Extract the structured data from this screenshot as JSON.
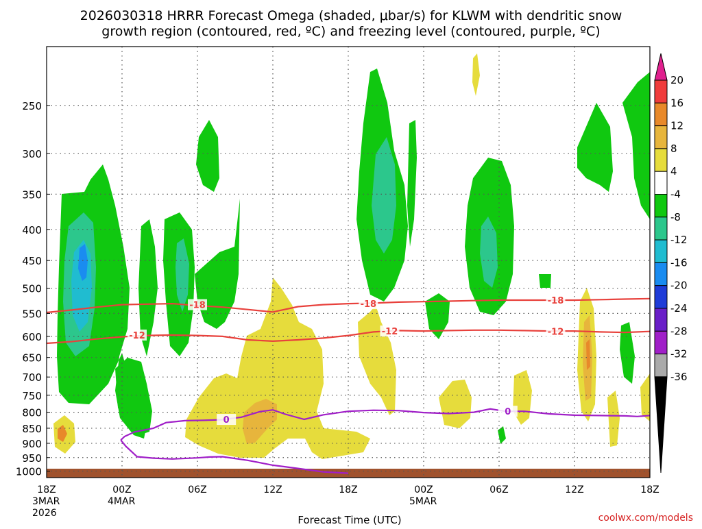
{
  "chart_data": {
    "type": "heatmap",
    "title_lines": [
      "2026030318 HRRR Forecast Omega (shaded, μbar/s) for KLWM with dendritic snow",
      "growth region (contoured, red, ºC) and freezing level (contoured, purple, ºC)"
    ],
    "xlabel": "Forecast Time (UTC)",
    "credit": "coolwx.com/models",
    "x_hours": [
      0,
      48
    ],
    "x_ticks": [
      {
        "h": 0,
        "lines": [
          "18Z",
          "3MAR",
          "2026"
        ]
      },
      {
        "h": 6,
        "lines": [
          "00Z",
          "4MAR"
        ]
      },
      {
        "h": 12,
        "lines": [
          "06Z"
        ]
      },
      {
        "h": 18,
        "lines": [
          "12Z"
        ]
      },
      {
        "h": 24,
        "lines": [
          "18Z"
        ]
      },
      {
        "h": 30,
        "lines": [
          "00Z",
          "5MAR"
        ]
      },
      {
        "h": 36,
        "lines": [
          "06Z"
        ]
      },
      {
        "h": 42,
        "lines": [
          "12Z"
        ]
      },
      {
        "h": 48,
        "lines": [
          "18Z"
        ]
      }
    ],
    "y_range_hpa": [
      200,
      1025
    ],
    "y_ticks": [
      250,
      300,
      350,
      400,
      450,
      500,
      550,
      600,
      650,
      700,
      750,
      800,
      850,
      900,
      950,
      1000
    ],
    "colorbar": {
      "labels": [
        "20",
        "16",
        "12",
        "8",
        "4",
        "-4",
        "-8",
        "-12",
        "-16",
        "-20",
        "-24",
        "-28",
        "-32",
        "-36"
      ],
      "bins": [
        {
          "lo": 16,
          "hi": 20,
          "color": "#f03c3c"
        },
        {
          "lo": 12,
          "hi": 16,
          "color": "#e8892a"
        },
        {
          "lo": 8,
          "hi": 12,
          "color": "#e7b53c"
        },
        {
          "lo": 4,
          "hi": 8,
          "color": "#e6dc3c"
        },
        {
          "lo": -4,
          "hi": 4,
          "color": "#ffffff"
        },
        {
          "lo": -8,
          "hi": -4,
          "color": "#10c810"
        },
        {
          "lo": -12,
          "hi": -8,
          "color": "#2cc78c"
        },
        {
          "lo": -16,
          "hi": -12,
          "color": "#20bcd0"
        },
        {
          "lo": -20,
          "hi": -16,
          "color": "#1a8cf0"
        },
        {
          "lo": -24,
          "hi": -20,
          "color": "#1f3cd8"
        },
        {
          "lo": -28,
          "hi": -24,
          "color": "#6a1fc8"
        },
        {
          "lo": -32,
          "hi": -28,
          "color": "#a01fc8"
        },
        {
          "lo": -36,
          "hi": -32,
          "color": "#aaaaaa"
        }
      ],
      "top_color": "#e0208e",
      "bottom_color": "#000000"
    },
    "contours": [
      {
        "name": "minus18",
        "label": "-18",
        "color": "#e8413c",
        "pts": [
          [
            0,
            548
          ],
          [
            2,
            543
          ],
          [
            4,
            537
          ],
          [
            6,
            532
          ],
          [
            8,
            531
          ],
          [
            10,
            530
          ],
          [
            12,
            534
          ],
          [
            14,
            537
          ],
          [
            16,
            542
          ],
          [
            18,
            547
          ],
          [
            20,
            536
          ],
          [
            22,
            532
          ],
          [
            24,
            530
          ],
          [
            26,
            529
          ],
          [
            28,
            527
          ],
          [
            30,
            526
          ],
          [
            32,
            525
          ],
          [
            34,
            524
          ],
          [
            36,
            523
          ],
          [
            38,
            523
          ],
          [
            40,
            523
          ],
          [
            42,
            523
          ],
          [
            44,
            522
          ],
          [
            46,
            521
          ],
          [
            48,
            520
          ]
        ],
        "labels_at": [
          [
            12,
            532
          ],
          [
            25.6,
            530
          ],
          [
            40.5,
            523
          ]
        ]
      },
      {
        "name": "minus12",
        "label": "-12",
        "color": "#e8413c",
        "pts": [
          [
            0,
            616
          ],
          [
            2,
            612
          ],
          [
            4,
            606
          ],
          [
            6,
            601
          ],
          [
            8,
            598
          ],
          [
            10,
            597
          ],
          [
            12,
            598
          ],
          [
            14,
            600
          ],
          [
            16,
            608
          ],
          [
            18,
            611
          ],
          [
            20,
            608
          ],
          [
            22,
            604
          ],
          [
            24,
            598
          ],
          [
            26,
            590
          ],
          [
            28,
            587
          ],
          [
            30,
            588
          ],
          [
            32,
            587
          ],
          [
            34,
            586
          ],
          [
            36,
            586
          ],
          [
            38,
            587
          ],
          [
            40,
            588
          ],
          [
            42,
            588
          ],
          [
            44,
            590
          ],
          [
            46,
            591
          ],
          [
            48,
            589
          ]
        ],
        "labels_at": [
          [
            7.2,
            597
          ],
          [
            27.3,
            588
          ],
          [
            40.5,
            589
          ]
        ]
      },
      {
        "name": "freezing_level",
        "label": "0",
        "color": "#a01fc8",
        "pts": [
          [
            5.9,
            889
          ],
          [
            6.2,
            877
          ],
          [
            7.0,
            862
          ],
          [
            8.5,
            850
          ],
          [
            9.5,
            832
          ],
          [
            11.0,
            826
          ],
          [
            12.5,
            825
          ],
          [
            14.0,
            823
          ],
          [
            15.5,
            815
          ],
          [
            17.0,
            798
          ],
          [
            18.0,
            793
          ],
          [
            19.0,
            806
          ],
          [
            20.5,
            822
          ],
          [
            22.0,
            808
          ],
          [
            24.0,
            797
          ],
          [
            26.0,
            794
          ],
          [
            28.0,
            795
          ],
          [
            30.0,
            801
          ],
          [
            32.0,
            804
          ],
          [
            34.0,
            800
          ],
          [
            35.3,
            790
          ],
          [
            36.5,
            797
          ],
          [
            38.0,
            797
          ],
          [
            40.0,
            805
          ],
          [
            42.0,
            809
          ],
          [
            44.0,
            810
          ],
          [
            46.0,
            811
          ],
          [
            47.0,
            813
          ],
          [
            48.0,
            810
          ]
        ],
        "labels_at": [
          [
            14.3,
            822
          ],
          [
            36.7,
            797
          ]
        ]
      },
      {
        "name": "freezing_level_lower",
        "label": "",
        "color": "#a01fc8",
        "pts": [
          [
            5.9,
            889
          ],
          [
            6.3,
            910
          ],
          [
            7.2,
            947
          ],
          [
            8.5,
            952
          ],
          [
            10.0,
            955
          ],
          [
            12.0,
            951
          ],
          [
            13.0,
            948
          ],
          [
            14.0,
            947
          ],
          [
            16.0,
            960
          ],
          [
            18.0,
            978
          ],
          [
            20.0,
            990
          ],
          [
            22.0,
            1003
          ],
          [
            24.0,
            1008
          ]
        ],
        "labels_at": []
      }
    ]
  }
}
